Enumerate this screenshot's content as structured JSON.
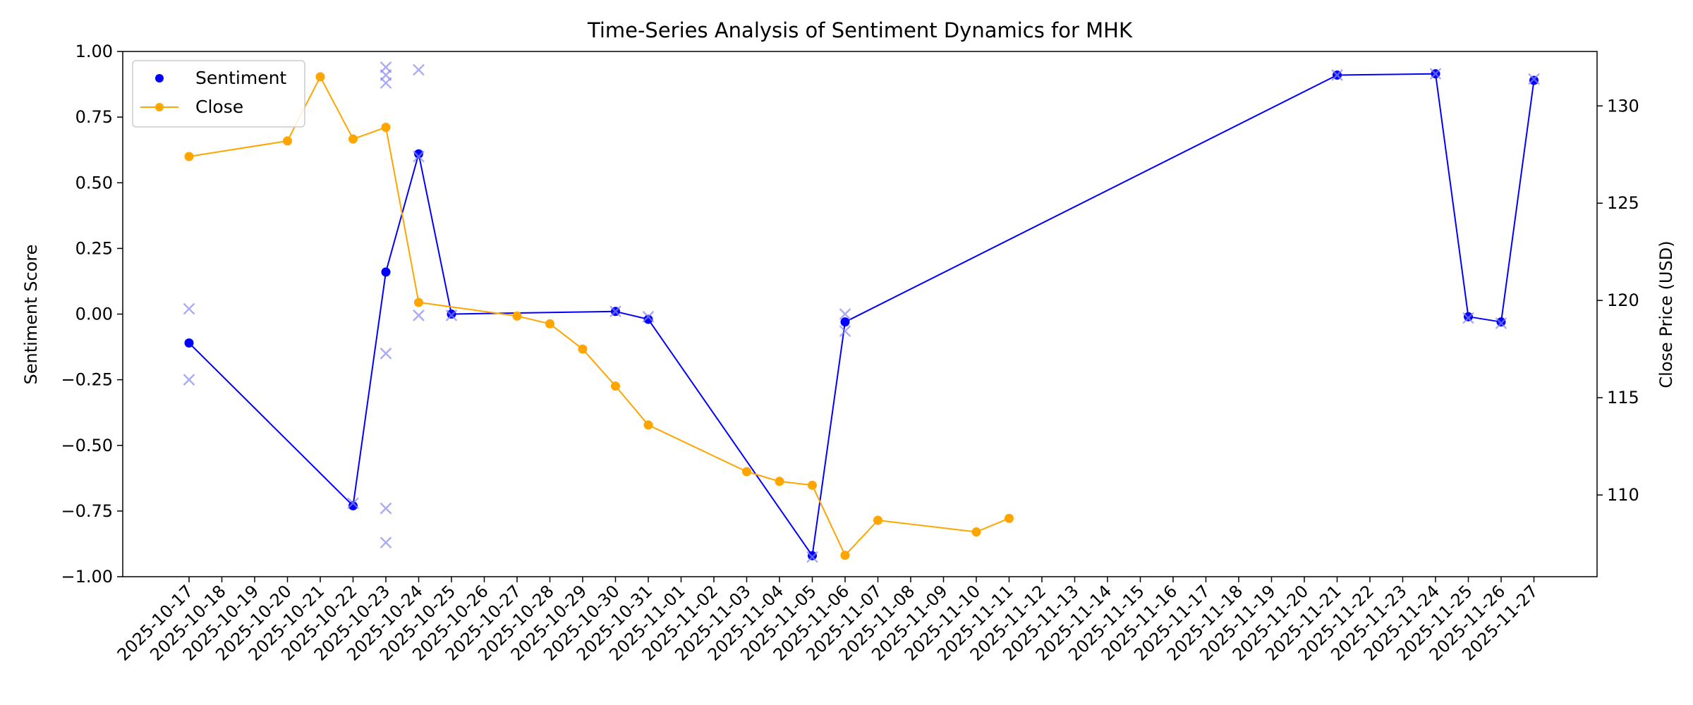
{
  "chart_data": {
    "type": "line",
    "title": "Time-Series Analysis of Sentiment Dynamics for MHK",
    "xlabel": "",
    "ylabel_left": "Sentiment Score",
    "ylabel_right": "Close Price (USD)",
    "ylim_left": [
      -1.0,
      1.0
    ],
    "ylim_right": [
      105.8,
      132.8
    ],
    "yticks_left": [
      "−1.00",
      "−0.75",
      "−0.50",
      "−0.25",
      "0.00",
      "0.25",
      "0.50",
      "0.75",
      "1.00"
    ],
    "yticks_left_values": [
      -1.0,
      -0.75,
      -0.5,
      -0.25,
      0.0,
      0.25,
      0.5,
      0.75,
      1.0
    ],
    "yticks_right": [
      "110",
      "115",
      "120",
      "125",
      "130"
    ],
    "yticks_right_values": [
      110,
      115,
      120,
      125,
      130
    ],
    "x_dates": [
      "2025-10-17",
      "2025-10-18",
      "2025-10-19",
      "2025-10-20",
      "2025-10-21",
      "2025-10-22",
      "2025-10-23",
      "2025-10-24",
      "2025-10-25",
      "2025-10-26",
      "2025-10-27",
      "2025-10-28",
      "2025-10-29",
      "2025-10-30",
      "2025-10-31",
      "2025-11-01",
      "2025-11-02",
      "2025-11-03",
      "2025-11-04",
      "2025-11-05",
      "2025-11-06",
      "2025-11-07",
      "2025-11-08",
      "2025-11-09",
      "2025-11-10",
      "2025-11-11",
      "2025-11-12",
      "2025-11-13",
      "2025-11-14",
      "2025-11-15",
      "2025-11-16",
      "2025-11-17",
      "2025-11-18",
      "2025-11-19",
      "2025-11-20",
      "2025-11-21",
      "2025-11-22",
      "2025-11-23",
      "2025-11-24",
      "2025-11-25",
      "2025-11-26",
      "2025-11-27"
    ],
    "legend_position": "top-left",
    "grid": false,
    "series": [
      {
        "name": "Sentiment",
        "axis": "left",
        "color": "#0000ff",
        "points": [
          {
            "x": "2025-10-17",
            "y": -0.11
          },
          {
            "x": "2025-10-22",
            "y": -0.73
          },
          {
            "x": "2025-10-23",
            "y": 0.16
          },
          {
            "x": "2025-10-24",
            "y": 0.61
          },
          {
            "x": "2025-10-25",
            "y": 0.0
          },
          {
            "x": "2025-10-30",
            "y": 0.01
          },
          {
            "x": "2025-10-31",
            "y": -0.02
          },
          {
            "x": "2025-11-05",
            "y": -0.92
          },
          {
            "x": "2025-11-06",
            "y": -0.03
          },
          {
            "x": "2025-11-21",
            "y": 0.91
          },
          {
            "x": "2025-11-24",
            "y": 0.915
          },
          {
            "x": "2025-11-25",
            "y": -0.01
          },
          {
            "x": "2025-11-26",
            "y": -0.03
          },
          {
            "x": "2025-11-27",
            "y": 0.89
          }
        ]
      },
      {
        "name": "Close",
        "axis": "right",
        "color": "#ffa500",
        "points": [
          {
            "x": "2025-10-17",
            "y": 127.4
          },
          {
            "x": "2025-10-20",
            "y": 128.2
          },
          {
            "x": "2025-10-21",
            "y": 131.5
          },
          {
            "x": "2025-10-22",
            "y": 128.3
          },
          {
            "x": "2025-10-23",
            "y": 128.9
          },
          {
            "x": "2025-10-24",
            "y": 119.9
          },
          {
            "x": "2025-10-27",
            "y": 119.2
          },
          {
            "x": "2025-10-28",
            "y": 118.8
          },
          {
            "x": "2025-10-29",
            "y": 117.5
          },
          {
            "x": "2025-10-30",
            "y": 115.6
          },
          {
            "x": "2025-10-31",
            "y": 113.6
          },
          {
            "x": "2025-11-03",
            "y": 111.2
          },
          {
            "x": "2025-11-04",
            "y": 110.7
          },
          {
            "x": "2025-11-05",
            "y": 110.5
          },
          {
            "x": "2025-11-06",
            "y": 106.9
          },
          {
            "x": "2025-11-07",
            "y": 108.7
          },
          {
            "x": "2025-11-10",
            "y": 108.1
          },
          {
            "x": "2025-11-11",
            "y": 108.8
          }
        ]
      },
      {
        "name": "",
        "axis": "left",
        "color": "#8888ee",
        "marker": "x",
        "points": [
          {
            "x": "2025-10-17",
            "y": 0.02
          },
          {
            "x": "2025-10-17",
            "y": -0.25
          },
          {
            "x": "2025-10-22",
            "y": -0.72
          },
          {
            "x": "2025-10-23",
            "y": 0.94
          },
          {
            "x": "2025-10-23",
            "y": 0.91
          },
          {
            "x": "2025-10-23",
            "y": 0.88
          },
          {
            "x": "2025-10-23",
            "y": -0.15
          },
          {
            "x": "2025-10-23",
            "y": -0.74
          },
          {
            "x": "2025-10-23",
            "y": -0.87
          },
          {
            "x": "2025-10-24",
            "y": 0.93
          },
          {
            "x": "2025-10-24",
            "y": 0.6
          },
          {
            "x": "2025-10-24",
            "y": -0.005
          },
          {
            "x": "2025-10-25",
            "y": -0.005
          },
          {
            "x": "2025-10-30",
            "y": 0.01
          },
          {
            "x": "2025-10-31",
            "y": -0.01
          },
          {
            "x": "2025-11-05",
            "y": -0.925
          },
          {
            "x": "2025-11-06",
            "y": 0.0
          },
          {
            "x": "2025-11-06",
            "y": -0.065
          },
          {
            "x": "2025-11-21",
            "y": 0.91
          },
          {
            "x": "2025-11-24",
            "y": 0.915
          },
          {
            "x": "2025-11-25",
            "y": -0.015
          },
          {
            "x": "2025-11-26",
            "y": -0.035
          },
          {
            "x": "2025-11-27",
            "y": 0.895
          }
        ]
      }
    ]
  }
}
